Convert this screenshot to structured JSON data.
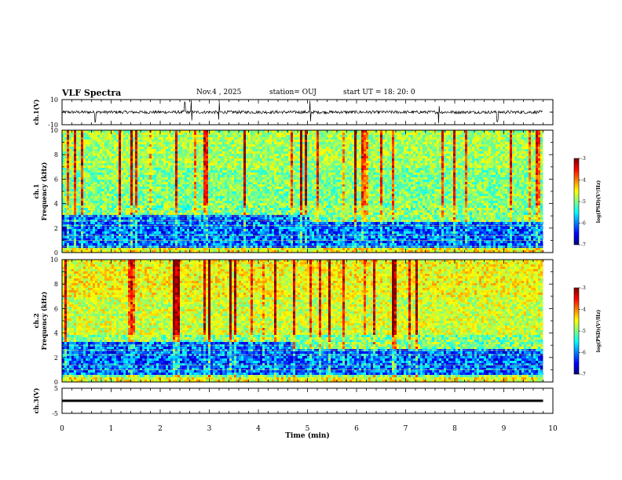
{
  "header": {
    "title": "VLF Spectra",
    "date": "Nov.4 , 2025",
    "station": "station= OUJ",
    "start": "start UT = 18: 20: 0"
  },
  "chart_data": [
    {
      "type": "line",
      "id": "ch1-waveform",
      "ylabel": "ch.1(V)",
      "ylim": [
        -10,
        10
      ],
      "yticks": [
        "10",
        "-10"
      ],
      "xlim": [
        0,
        10
      ],
      "data_xmax": 9.8,
      "baseline": 0,
      "description_values": {
        "mean": 0,
        "spike_times_min": [
          0.68,
          2.5,
          2.64,
          3.2,
          5.06,
          7.68,
          8.87
        ]
      }
    },
    {
      "type": "heatmap",
      "id": "ch1-spectrogram",
      "ylabel_line1": "ch.1",
      "ylabel_line2": "Frequency (kHz)",
      "ylim": [
        0,
        10
      ],
      "yticks": [
        "0",
        "2",
        "4",
        "6",
        "8",
        "10"
      ],
      "xlim": [
        0,
        10
      ],
      "data_xmax": 9.8,
      "dark_band_khz": [
        0.5,
        2.8
      ],
      "transition_time_min": 5.0,
      "colorbar": {
        "label": "log(PSD)(V²/Hz)",
        "range": [
          -7,
          -3
        ],
        "ticks": [
          "-3",
          "-4",
          "-5",
          "-6",
          "-7"
        ]
      }
    },
    {
      "type": "heatmap",
      "id": "ch2-spectrogram",
      "ylabel_line1": "ch.2",
      "ylabel_line2": "Frequency (kHz)",
      "ylim": [
        0,
        10
      ],
      "yticks": [
        "0",
        "2",
        "4",
        "6",
        "8",
        "10"
      ],
      "xlim": [
        0,
        10
      ],
      "data_xmax": 9.8,
      "dark_band_khz": [
        0.6,
        3.0
      ],
      "transition_time_min": 4.7,
      "colorbar": {
        "label": "log(PSD)(V²/Hz)",
        "range": [
          -7,
          -3
        ],
        "ticks": [
          "-3",
          "-4",
          "-5",
          "-6",
          "-7"
        ]
      }
    },
    {
      "type": "line",
      "id": "ch3-waveform",
      "ylabel": "ch.3(V)",
      "ylim": [
        -5,
        5
      ],
      "yticks": [
        "5",
        "-5"
      ],
      "xlim": [
        0,
        10
      ],
      "data_xmax": 9.8,
      "baseline": 0
    }
  ],
  "x_axis": {
    "label": "Time (min)",
    "ticks": [
      "0",
      "1",
      "2",
      "3",
      "4",
      "5",
      "6",
      "7",
      "8",
      "9",
      "10"
    ]
  },
  "colors": {
    "jet": [
      "#00007f",
      "#0000ff",
      "#007fff",
      "#00ffff",
      "#7fff7f",
      "#ffff00",
      "#ff7f00",
      "#ff0000",
      "#7f0000"
    ]
  }
}
